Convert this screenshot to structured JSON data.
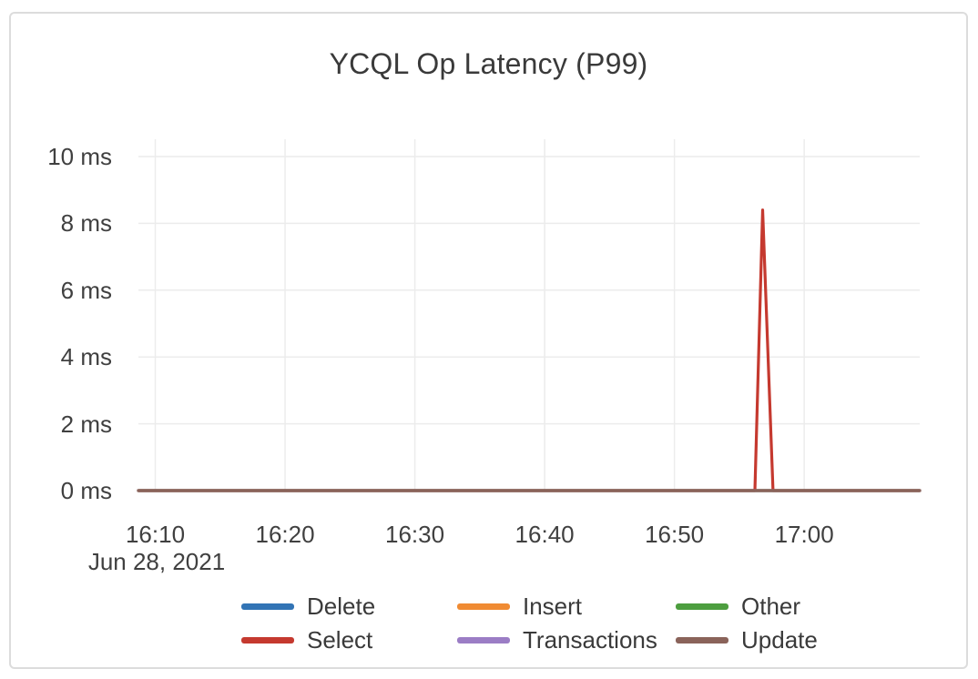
{
  "chart_data": {
    "type": "line",
    "title": "YCQL Op Latency (P99)",
    "x_axis": {
      "date_label": "Jun 28, 2021",
      "tick_labels": [
        "16:10",
        "16:20",
        "16:30",
        "16:40",
        "16:50",
        "17:00"
      ],
      "tick_minutes": [
        10,
        20,
        30,
        40,
        50,
        60
      ],
      "range_minutes_after_1600": [
        8.7,
        68.9
      ]
    },
    "y_axis": {
      "tick_labels": [
        "0 ms",
        "2 ms",
        "4 ms",
        "6 ms",
        "8 ms",
        "10 ms"
      ],
      "tick_values_ms": [
        0,
        2,
        4,
        6,
        8,
        10
      ],
      "range_ms": [
        0,
        10.5
      ]
    },
    "grid": true,
    "legend_position": "bottom-center",
    "series": [
      {
        "name": "Delete",
        "color": "#3274b5",
        "points_min_ms": [
          [
            8.7,
            0
          ],
          [
            68.9,
            0
          ]
        ]
      },
      {
        "name": "Insert",
        "color": "#f08b33",
        "points_min_ms": [
          [
            8.7,
            0
          ],
          [
            68.9,
            0
          ]
        ]
      },
      {
        "name": "Other",
        "color": "#4d9e3f",
        "points_min_ms": [
          [
            8.7,
            0
          ],
          [
            68.9,
            0
          ]
        ]
      },
      {
        "name": "Select",
        "color": "#c5392f",
        "points_min_ms": [
          [
            8.7,
            0
          ],
          [
            56.2,
            0
          ],
          [
            56.8,
            8.4
          ],
          [
            57.6,
            0
          ],
          [
            68.9,
            0
          ]
        ]
      },
      {
        "name": "Transactions",
        "color": "#9b7dc5",
        "points_min_ms": [
          [
            8.7,
            0
          ],
          [
            68.9,
            0
          ]
        ]
      },
      {
        "name": "Update",
        "color": "#8a635a",
        "points_min_ms": [
          [
            8.7,
            0
          ],
          [
            68.9,
            0
          ]
        ]
      }
    ],
    "peak": {
      "series": "Select",
      "time": "~16:57",
      "value_ms": 8.4
    }
  },
  "frame": {
    "background": "#ffffff",
    "border_color": "#dcdcdc",
    "gridline_color": "#ececec"
  },
  "text_colors": {
    "title": "#3a3a3a",
    "ticks": "#404040",
    "legend": "#3a3a3a"
  }
}
